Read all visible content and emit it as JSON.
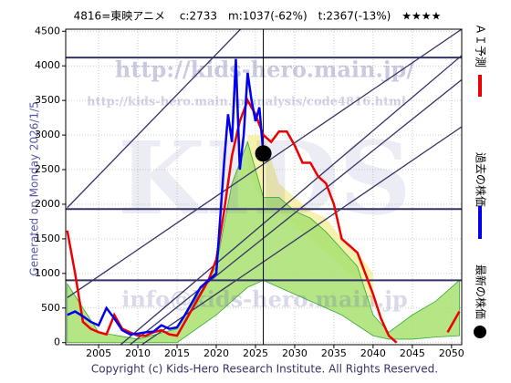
{
  "chart_data": {
    "type": "line",
    "title": "4816=東映アニメ　 c:2733　m:1037(-62%)　t:2367(-13%)　★★★★",
    "left_label": "Generated on Monday 2026/1/5.",
    "copyright": "Copyright (c) Kids-Hero Research Institute. All Rights Reserved.",
    "watermarks": [
      "http://kids-hero.main.jp/",
      "http://kids-hero.main.jp/analysis/code4816.html",
      "KIDS",
      "info@kids-hero.main.jp"
    ],
    "xlim": [
      2000.8,
      2051.3
    ],
    "ylim": [
      -30,
      4530
    ],
    "xticks": [
      2005,
      2010,
      2015,
      2020,
      2025,
      2030,
      2035,
      2040,
      2045,
      2050
    ],
    "yticks": [
      0,
      500,
      1000,
      1500,
      2000,
      2500,
      3000,
      3500,
      4000,
      4500
    ],
    "grid": true,
    "series": [
      {
        "name": "ＡＩ予測",
        "color": "#ee0000",
        "x": [
          2001,
          2002,
          2003,
          2004,
          2005,
          2006,
          2007,
          2008,
          2009,
          2010,
          2011,
          2012,
          2013,
          2014,
          2015,
          2016,
          2017,
          2018,
          2019,
          2020,
          2021,
          2022,
          2023,
          2024,
          2025,
          2026,
          2027,
          2028,
          2029,
          2030,
          2031,
          2032,
          2033,
          2034,
          2035,
          2036,
          2037,
          2038,
          2039,
          2040,
          2041,
          2042,
          2043,
          2046,
          2049.5,
          2050,
          2051
        ],
        "values": [
          1620,
          1000,
          300,
          200,
          150,
          120,
          400,
          200,
          150,
          100,
          100,
          150,
          180,
          120,
          100,
          300,
          500,
          700,
          900,
          1200,
          1900,
          2700,
          3200,
          3500,
          3300,
          3000,
          2900,
          3050,
          3050,
          2850,
          2600,
          2600,
          2400,
          2300,
          2000,
          1500,
          1400,
          1300,
          1000,
          700,
          350,
          100,
          0,
          null,
          150,
          250,
          450
        ]
      },
      {
        "name": "過去の株価",
        "color": "#0000ee",
        "x": [
          2001,
          2002,
          2003,
          2004,
          2005,
          2006,
          2007,
          2008,
          2009,
          2010,
          2011,
          2012,
          2013,
          2014,
          2015,
          2016,
          2017,
          2018,
          2019,
          2020,
          2020.5,
          2021,
          2021.5,
          2022,
          2022.5,
          2023,
          2023.5,
          2024,
          2024.5,
          2025,
          2025.5,
          2026
        ],
        "values": [
          400,
          450,
          380,
          300,
          250,
          500,
          350,
          180,
          120,
          130,
          150,
          160,
          250,
          200,
          220,
          400,
          600,
          800,
          900,
          1000,
          1800,
          2600,
          3300,
          2900,
          4100,
          2500,
          3000,
          3900,
          3500,
          3200,
          3400,
          2733
        ]
      }
    ],
    "latest": {
      "name": "最新の株価",
      "color": "#000000",
      "x": 2026,
      "value": 2733
    },
    "band": {
      "color": "#a8e070",
      "line_color": "#33aa33",
      "x": [
        2001,
        2005,
        2010,
        2015,
        2020,
        2022,
        2024,
        2026,
        2028,
        2030,
        2032,
        2034,
        2036,
        2038,
        2040,
        2042,
        2045,
        2048,
        2051
      ],
      "upper": [
        850,
        150,
        50,
        200,
        1100,
        2300,
        2900,
        2100,
        2100,
        1900,
        1800,
        1600,
        1350,
        1100,
        400,
        150,
        400,
        600,
        900
      ],
      "lower": [
        0,
        0,
        0,
        0,
        400,
        600,
        800,
        900,
        800,
        700,
        600,
        500,
        400,
        250,
        100,
        50,
        50,
        80,
        100
      ]
    },
    "yellow_band": {
      "color": "#f5f0a0",
      "x": [
        2024,
        2026,
        2028,
        2030,
        2032,
        2034,
        2036,
        2038,
        2040
      ],
      "upper": [
        3000,
        3000,
        2300,
        2100,
        1900,
        1800,
        1500,
        1300,
        1000
      ],
      "lower": [
        2500,
        2000,
        1900,
        1700,
        1500,
        1300,
        1100,
        900,
        500
      ]
    },
    "hlines": {
      "color": "#333366",
      "values": [
        4120,
        1930,
        900
      ]
    },
    "vline": 2026,
    "trend_lines": {
      "color": "#333366",
      "lines": [
        [
          [
            2001,
            1950
          ],
          [
            2023.1,
            4530
          ]
        ],
        [
          [
            2007.8,
            -30
          ],
          [
            2051.3,
            4150
          ]
        ],
        [
          [
            2009,
            -30
          ],
          [
            2051.3,
            3800
          ]
        ],
        [
          [
            2010.5,
            -30
          ],
          [
            2051.3,
            3120
          ]
        ],
        [
          [
            2001,
            650
          ],
          [
            2051.3,
            4530
          ]
        ]
      ]
    }
  }
}
